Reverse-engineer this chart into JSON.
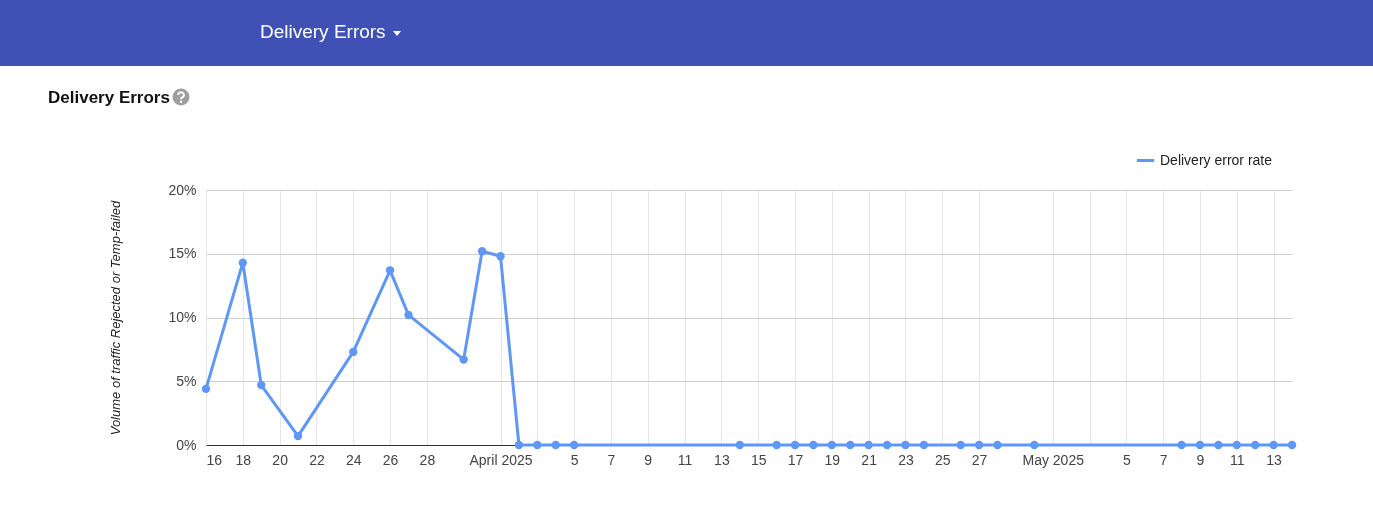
{
  "chart_data": {
    "type": "line",
    "title": "Delivery Errors",
    "ylabel": "Volume of traffic Rejected or Temp-failed",
    "legend": "top right",
    "grid": true,
    "marker": "circle",
    "line_style": "solid",
    "xlim": [
      "2025-03-16",
      "2025-05-14"
    ],
    "xticks": [
      {
        "value": "2025-03-16",
        "label": "16"
      },
      {
        "value": "2025-03-18",
        "label": "18"
      },
      {
        "value": "2025-03-20",
        "label": "20"
      },
      {
        "value": "2025-03-22",
        "label": "22"
      },
      {
        "value": "2025-03-24",
        "label": "24"
      },
      {
        "value": "2025-03-26",
        "label": "26"
      },
      {
        "value": "2025-03-28",
        "label": "28"
      },
      {
        "value": "2025-04-01",
        "label": "April 2025"
      },
      {
        "value": "2025-04-03",
        "label": null
      },
      {
        "value": "2025-04-05",
        "label": "5"
      },
      {
        "value": "2025-04-07",
        "label": "7"
      },
      {
        "value": "2025-04-09",
        "label": "9"
      },
      {
        "value": "2025-04-11",
        "label": "11"
      },
      {
        "value": "2025-04-13",
        "label": "13"
      },
      {
        "value": "2025-04-15",
        "label": "15"
      },
      {
        "value": "2025-04-17",
        "label": "17"
      },
      {
        "value": "2025-04-19",
        "label": "19"
      },
      {
        "value": "2025-04-21",
        "label": "21"
      },
      {
        "value": "2025-04-23",
        "label": "23"
      },
      {
        "value": "2025-04-25",
        "label": "25"
      },
      {
        "value": "2025-04-27",
        "label": "27"
      },
      {
        "value": "2025-05-01",
        "label": "May 2025"
      },
      {
        "value": "2025-05-03",
        "label": null
      },
      {
        "value": "2025-05-05",
        "label": "5"
      },
      {
        "value": "2025-05-07",
        "label": "7"
      },
      {
        "value": "2025-05-09",
        "label": "9"
      },
      {
        "value": "2025-05-11",
        "label": "11"
      },
      {
        "value": "2025-05-13",
        "label": "13"
      }
    ],
    "ylim": [
      0,
      20
    ],
    "yticks": [
      {
        "value": 0,
        "label": "0%"
      },
      {
        "value": 5,
        "label": "5%"
      },
      {
        "value": 10,
        "label": "10%"
      },
      {
        "value": 15,
        "label": "15%"
      },
      {
        "value": 20,
        "label": "20%"
      }
    ],
    "x": [
      "2025-03-16",
      "2025-03-18",
      "2025-03-19",
      "2025-03-21",
      "2025-03-24",
      "2025-03-26",
      "2025-03-27",
      "2025-03-30",
      "2025-03-31",
      "2025-04-01",
      "2025-04-02",
      "2025-04-03",
      "2025-04-04",
      "2025-04-05",
      "2025-04-14",
      "2025-04-16",
      "2025-04-17",
      "2025-04-18",
      "2025-04-19",
      "2025-04-20",
      "2025-04-21",
      "2025-04-22",
      "2025-04-23",
      "2025-04-24",
      "2025-04-26",
      "2025-04-27",
      "2025-04-28",
      "2025-04-30",
      "2025-05-08",
      "2025-05-09",
      "2025-05-10",
      "2025-05-11",
      "2025-05-12",
      "2025-05-13",
      "2025-05-14"
    ],
    "series": [
      {
        "name": "Delivery error rate",
        "color": "#5e97f6",
        "values": [
          4.4,
          14.3,
          4.7,
          0.7,
          7.3,
          13.7,
          10.2,
          6.7,
          15.2,
          14.8,
          0,
          0,
          0,
          0,
          0,
          0,
          0,
          0,
          0,
          0,
          0,
          0,
          0,
          0,
          0,
          0,
          0,
          0,
          0,
          0,
          0,
          0,
          0,
          0,
          0
        ]
      }
    ]
  }
}
